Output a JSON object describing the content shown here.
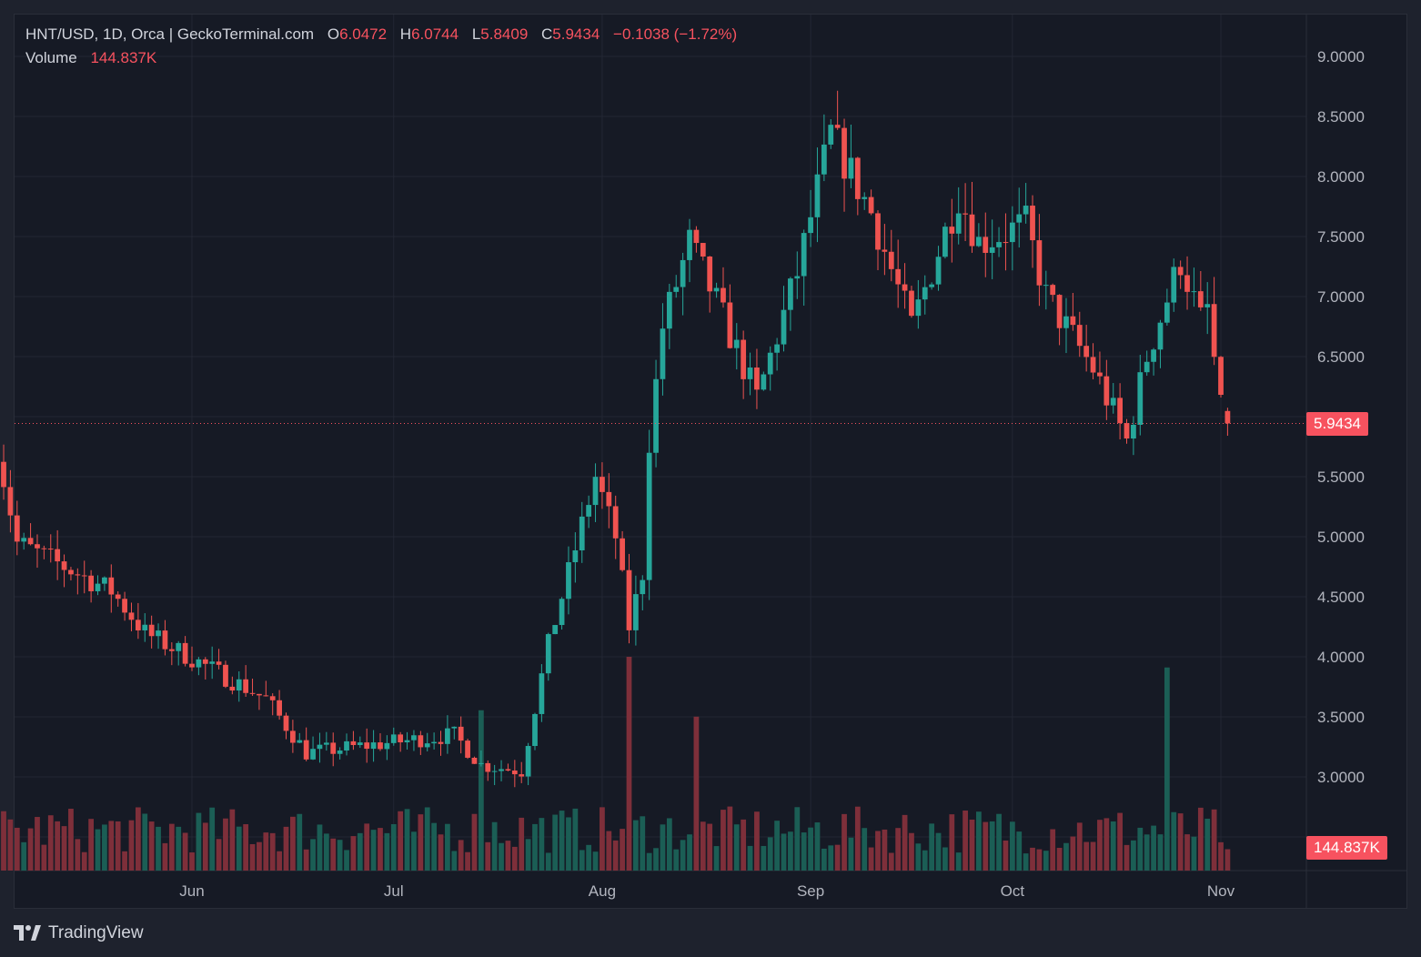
{
  "legend": {
    "symbol": "HNT/USD, 1D, Orca | GeckoTerminal.com",
    "o_label": "O",
    "o_value": "6.0472",
    "h_label": "H",
    "h_value": "6.0744",
    "l_label": "L",
    "l_value": "5.8409",
    "c_label": "C",
    "c_value": "5.9434",
    "change": "−0.1038 (−1.72%)",
    "volume_label": "Volume",
    "volume_value": "144.837K"
  },
  "last_price_tag": "5.9434",
  "last_volume_tag": "144.837K",
  "branding": "TradingView",
  "colors": {
    "up": "#26a69a",
    "down": "#ef5350",
    "up_volume": "#1b5e55",
    "down_volume": "#7e2f3a",
    "grid": "#232734",
    "axis_text": "#b2b5be",
    "price_line": "#f7525f"
  },
  "chart_data": {
    "type": "candlestick",
    "title": "HNT/USD, 1D, Orca | GeckoTerminal.com",
    "price_axis_ticks": [
      "9.0000",
      "8.5000",
      "8.0000",
      "7.5000",
      "7.0000",
      "6.5000",
      "5.5000",
      "5.0000",
      "4.5000",
      "4.0000",
      "3.5000",
      "3.0000"
    ],
    "time_axis_labels": [
      {
        "label": "Jun",
        "date": "2024-06-01"
      },
      {
        "label": "Jul",
        "date": "2024-07-01"
      },
      {
        "label": "Aug",
        "date": "2024-08-01"
      },
      {
        "label": "Sep",
        "date": "2024-09-01"
      },
      {
        "label": "Oct",
        "date": "2024-10-01"
      },
      {
        "label": "Nov",
        "date": "2024-11-01"
      }
    ],
    "ylim": [
      2.3,
      9.4
    ],
    "start_date": "2024-05-03",
    "end_date": "2024-11-02",
    "key_points": [
      {
        "date": "2024-05-03",
        "close": 5.75
      },
      {
        "date": "2024-05-06",
        "close": 4.95
      },
      {
        "date": "2024-05-20",
        "close": 4.55
      },
      {
        "date": "2024-05-25",
        "close": 4.2
      },
      {
        "date": "2024-06-12",
        "close": 3.65
      },
      {
        "date": "2024-06-18",
        "close": 3.2
      },
      {
        "date": "2024-07-10",
        "close": 3.35
      },
      {
        "date": "2024-07-14",
        "close": 3.1
      },
      {
        "date": "2024-07-20",
        "close": 3.05
      },
      {
        "date": "2024-07-24",
        "close": 4.1
      },
      {
        "date": "2024-07-31",
        "close": 5.5
      },
      {
        "date": "2024-08-03",
        "close": 5.0
      },
      {
        "date": "2024-08-05",
        "close": 4.25
      },
      {
        "date": "2024-08-07",
        "close": 4.7
      },
      {
        "date": "2024-08-08",
        "close": 5.8
      },
      {
        "date": "2024-08-10",
        "close": 6.75
      },
      {
        "date": "2024-08-14",
        "close": 7.45
      },
      {
        "date": "2024-08-18",
        "close": 6.95
      },
      {
        "date": "2024-08-24",
        "close": 6.15
      },
      {
        "date": "2024-08-30",
        "close": 7.2
      },
      {
        "date": "2024-09-04",
        "close": 8.35
      },
      {
        "date": "2024-09-10",
        "close": 7.7
      },
      {
        "date": "2024-09-16",
        "close": 6.75
      },
      {
        "date": "2024-09-23",
        "close": 7.85
      },
      {
        "date": "2024-09-26",
        "close": 7.45
      },
      {
        "date": "2024-10-03",
        "close": 7.6
      },
      {
        "date": "2024-10-06",
        "close": 7.0
      },
      {
        "date": "2024-10-13",
        "close": 6.4
      },
      {
        "date": "2024-10-18",
        "close": 5.8
      },
      {
        "date": "2024-10-21",
        "close": 6.5
      },
      {
        "date": "2024-10-26",
        "close": 7.3
      },
      {
        "date": "2024-10-29",
        "close": 6.8
      },
      {
        "date": "2024-10-30",
        "close": 6.9
      },
      {
        "date": "2024-11-01",
        "close": 6.05
      },
      {
        "date": "2024-11-02",
        "close": 5.9434
      }
    ],
    "volume_spikes": [
      {
        "date": "2024-07-14",
        "volume_rel": 0.75
      },
      {
        "date": "2024-08-05",
        "volume_rel": 1.0
      },
      {
        "date": "2024-08-15",
        "volume_rel": 0.72
      },
      {
        "date": "2024-10-24",
        "volume_rel": 0.95
      }
    ],
    "last": {
      "open": 6.0472,
      "high": 6.0744,
      "low": 5.8409,
      "close": 5.9434,
      "change": -0.1038,
      "change_pct": -1.72,
      "volume": "144.837K"
    }
  }
}
